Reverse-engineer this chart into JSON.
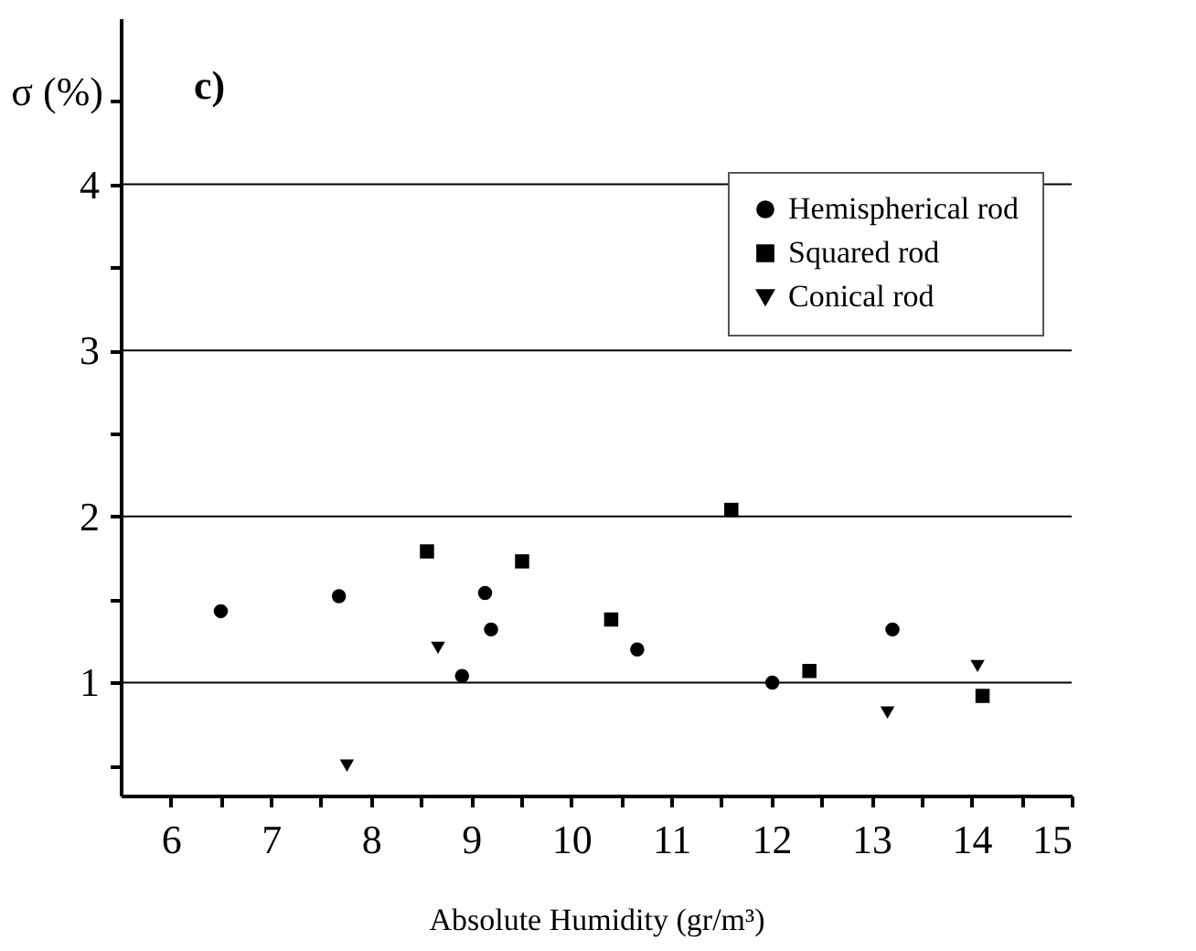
{
  "chart_data": {
    "type": "scatter",
    "xlabel": "Absolute Humidity (gr/m³)",
    "ylabel": "σ (%)",
    "annotations": [
      "c)"
    ],
    "xlim": [
      5.5,
      15
    ],
    "xticks": [
      6,
      {
        "value": 6.5,
        "label": null
      },
      7,
      {
        "value": 7.5,
        "label": null
      },
      8,
      {
        "value": 8.5,
        "label": null
      },
      9,
      {
        "value": 9.5,
        "label": null
      },
      10,
      {
        "value": 10.5,
        "label": null
      },
      11,
      {
        "value": 11.5,
        "label": null
      },
      12,
      {
        "value": 12.5,
        "label": null
      },
      13,
      {
        "value": 13.5,
        "label": null
      },
      14,
      {
        "value": 14.5,
        "label": null
      },
      15
    ],
    "ylim": [
      0.32,
      5
    ],
    "yticks": [
      {
        "value": 0.5,
        "label": null
      },
      1,
      {
        "value": 1.5,
        "label": null
      },
      2,
      {
        "value": 2.5,
        "label": null
      },
      3,
      {
        "value": 3.5,
        "label": null
      },
      4,
      {
        "value": 4.5,
        "label": null
      }
    ],
    "grid": "y",
    "legend": "top right",
    "series": [
      {
        "name": "Hemispherical rod",
        "color": "#000000",
        "marker": "circle",
        "x": [
          6.5,
          7.68,
          9.14,
          9.2,
          8.91,
          10.66,
          12.01,
          13.21
        ],
        "values": [
          1.43,
          1.52,
          1.54,
          1.32,
          1.04,
          1.2,
          1.0,
          1.32
        ]
      },
      {
        "name": "Squared rod",
        "color": "#000000",
        "marker": "square",
        "x": [
          8.56,
          9.51,
          10.4,
          11.6,
          12.38,
          14.11
        ],
        "values": [
          1.79,
          1.73,
          1.38,
          2.04,
          1.07,
          0.92
        ]
      },
      {
        "name": "Conical rod",
        "color": "#000000",
        "marker": "triangle",
        "x": [
          8.67,
          7.76,
          13.16,
          14.06
        ],
        "values": [
          1.21,
          0.5,
          0.82,
          1.1
        ]
      }
    ]
  }
}
